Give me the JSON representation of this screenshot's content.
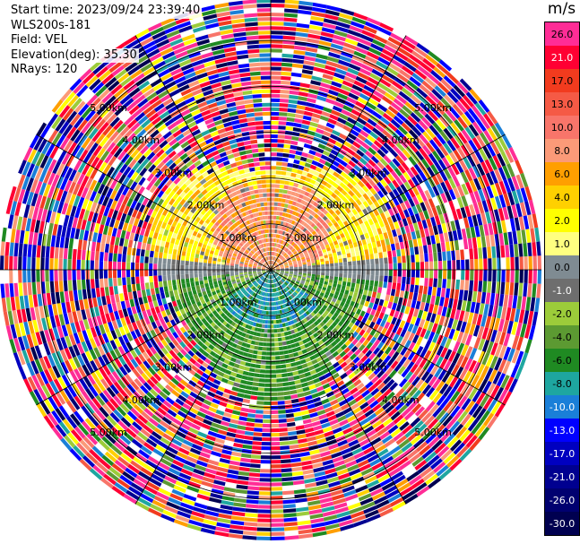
{
  "info": {
    "start_time": "Start time: 2023/09/24 23:39:40",
    "instrument": "WLS200s-181",
    "field": "Field: VEL",
    "elevation": "Elevation(deg): 35.30",
    "nrays": "NRays: 120"
  },
  "colorbar": {
    "unit": "m/s",
    "bins": [
      {
        "label": "26.0",
        "color": "#ff2d96",
        "text_color": "#000000"
      },
      {
        "label": "21.0",
        "color": "#ff0033",
        "text_color": "#ffffff"
      },
      {
        "label": "17.0",
        "color": "#f23b1e",
        "text_color": "#000000"
      },
      {
        "label": "13.0",
        "color": "#f55a45",
        "text_color": "#000000"
      },
      {
        "label": "10.0",
        "color": "#f8756a",
        "text_color": "#000000"
      },
      {
        "label": "8.0",
        "color": "#fb9a78",
        "text_color": "#000000"
      },
      {
        "label": "6.0",
        "color": "#ff9f00",
        "text_color": "#000000"
      },
      {
        "label": "4.0",
        "color": "#ffd000",
        "text_color": "#000000"
      },
      {
        "label": "2.0",
        "color": "#ffff00",
        "text_color": "#000000"
      },
      {
        "label": "1.0",
        "color": "#ffff80",
        "text_color": "#000000"
      },
      {
        "label": "0.0",
        "color": "#7f8b92",
        "text_color": "#000000"
      },
      {
        "label": "-1.0",
        "color": "#6e6e6e",
        "text_color": "#ffffff"
      },
      {
        "label": "-2.0",
        "color": "#9ccc3a",
        "text_color": "#000000"
      },
      {
        "label": "-4.0",
        "color": "#5c9a32",
        "text_color": "#000000"
      },
      {
        "label": "-6.0",
        "color": "#1f8a22",
        "text_color": "#000000"
      },
      {
        "label": "-8.0",
        "color": "#1ea6a0",
        "text_color": "#000000"
      },
      {
        "label": "-10.0",
        "color": "#1a7fd8",
        "text_color": "#ffffff"
      },
      {
        "label": "-13.0",
        "color": "#0000ff",
        "text_color": "#ffffff"
      },
      {
        "label": "-17.0",
        "color": "#0000c0",
        "text_color": "#ffffff"
      },
      {
        "label": "-21.0",
        "color": "#000090",
        "text_color": "#ffffff"
      },
      {
        "label": "-26.0",
        "color": "#000070",
        "text_color": "#ffffff"
      },
      {
        "label": "-30.0",
        "color": "#000050",
        "text_color": "#ffffff"
      }
    ]
  },
  "chart_data": {
    "type": "heatmap",
    "projection": "polar-ppi",
    "nrays": 120,
    "range_rings_km": [
      1.0,
      2.0,
      3.0,
      4.0,
      5.0
    ],
    "range_ring_labels": [
      "1.00km",
      "2.00km",
      "3.00km",
      "4.00km",
      "5.00km"
    ],
    "max_range_km": 5.9,
    "value_unit": "m/s",
    "value_range": [
      -30.0,
      26.0
    ],
    "grid": true,
    "spokes_deg": [
      0,
      30,
      60,
      90,
      120,
      150,
      180,
      210,
      240,
      270,
      300,
      330
    ]
  }
}
